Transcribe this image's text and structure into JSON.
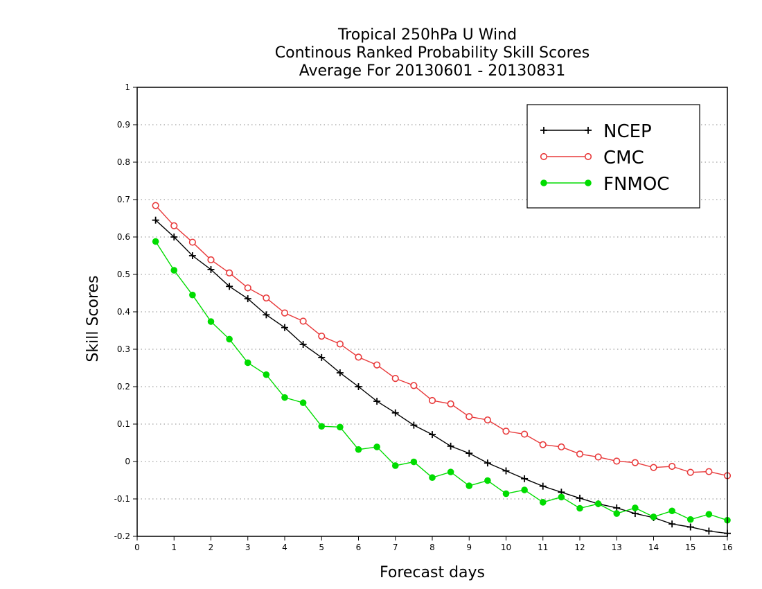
{
  "chart_data": {
    "type": "line",
    "title": [
      "Tropical 250hPa U Wind",
      "Continous Ranked Probability Skill Scores",
      "Average For 20130601 - 20130831"
    ],
    "xlabel": "Forecast days",
    "ylabel": "Skill Scores",
    "xlim": [
      0,
      16
    ],
    "ylim": [
      -0.2,
      1
    ],
    "xticks": [
      "0",
      "1",
      "2",
      "3",
      "4",
      "5",
      "6",
      "7",
      "8",
      "9",
      "10",
      "11",
      "12",
      "13",
      "14",
      "15",
      "16"
    ],
    "yticks": [
      "-0.2",
      "-0.1",
      "0",
      "0.1",
      "0.2",
      "0.3",
      "0.4",
      "0.5",
      "0.6",
      "0.7",
      "0.8",
      "0.9",
      "1"
    ],
    "grid": "horizontal-dotted",
    "legend_position": "top-right",
    "x": [
      0.5,
      1,
      1.5,
      2,
      2.5,
      3,
      3.5,
      4,
      4.5,
      5,
      5.5,
      6,
      6.5,
      7,
      7.5,
      8,
      8.5,
      9,
      9.5,
      10,
      10.5,
      11,
      11.5,
      12,
      12.5,
      13,
      13.5,
      14,
      14.5,
      15,
      15.5,
      16
    ],
    "series": [
      {
        "name": "NCEP",
        "color": "#000000",
        "marker": "plus",
        "values": [
          0.645,
          0.6,
          0.55,
          0.513,
          0.468,
          0.435,
          0.392,
          0.358,
          0.313,
          0.278,
          0.237,
          0.2,
          0.161,
          0.13,
          0.097,
          0.072,
          0.041,
          0.022,
          -0.004,
          -0.025,
          -0.046,
          -0.066,
          -0.082,
          -0.098,
          -0.113,
          -0.124,
          -0.139,
          -0.15,
          -0.167,
          -0.175,
          -0.186,
          -0.192
        ]
      },
      {
        "name": "CMC",
        "color": "#e8393a",
        "marker": "open-circle",
        "values": [
          0.684,
          0.63,
          0.586,
          0.539,
          0.504,
          0.464,
          0.437,
          0.397,
          0.375,
          0.335,
          0.314,
          0.279,
          0.258,
          0.222,
          0.203,
          0.163,
          0.154,
          0.12,
          0.111,
          0.081,
          0.073,
          0.045,
          0.039,
          0.02,
          0.012,
          0.001,
          -0.003,
          -0.016,
          -0.013,
          -0.029,
          -0.027,
          -0.038
        ]
      },
      {
        "name": "FNMOC",
        "color": "#00dc00",
        "marker": "filled-circle",
        "values": [
          0.588,
          0.511,
          0.445,
          0.374,
          0.327,
          0.264,
          0.232,
          0.171,
          0.157,
          0.094,
          0.092,
          0.032,
          0.039,
          -0.011,
          -0.001,
          -0.043,
          -0.028,
          -0.065,
          -0.051,
          -0.086,
          -0.076,
          -0.109,
          -0.095,
          -0.125,
          -0.113,
          -0.139,
          -0.124,
          -0.148,
          -0.132,
          -0.155,
          -0.141,
          -0.157
        ]
      }
    ]
  }
}
